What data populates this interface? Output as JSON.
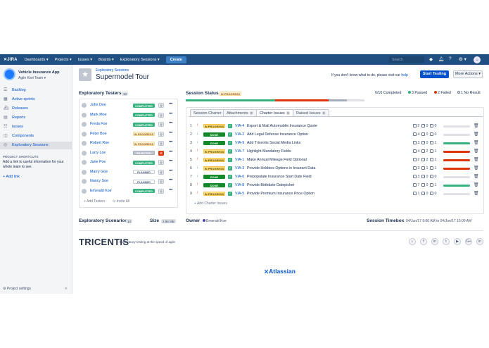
{
  "topbar": {
    "logo": "✕JIRA",
    "nav": [
      "Dashboards ▾",
      "Projects ▾",
      "Issues ▾",
      "Boards ▾",
      "Exploratory Sessions ▾"
    ],
    "create": "Create",
    "search_placeholder": "Search"
  },
  "sidebar": {
    "project_name": "Vehicle Insurance App",
    "team": "Agile Kiwi Team ▾",
    "items": [
      {
        "label": "Backlog",
        "icon": "backlog-icon"
      },
      {
        "label": "Active sprints",
        "icon": "board-icon"
      },
      {
        "label": "Releases",
        "icon": "ship-icon"
      },
      {
        "label": "Reports",
        "icon": "chart-icon"
      },
      {
        "label": "Issues",
        "icon": "issues-icon"
      },
      {
        "label": "Components",
        "icon": "components-icon"
      },
      {
        "label": "Exploratory Sessions",
        "icon": "session-icon"
      }
    ],
    "shortcuts_title": "PROJECT SHORTCUTS",
    "shortcuts_desc": "Add a link to useful information for your whole team to see.",
    "add_link": "Add link",
    "project_settings": "Project settings"
  },
  "header": {
    "breadcrumb": "Exploratory Sessions",
    "title": "Supermodel Tour",
    "help_prefix": "If you don't know what to do, please visit our ",
    "help_link": "help",
    "start_button": "Start Testing",
    "more_button": "More Actions ▾"
  },
  "testers": {
    "title": "Exploratory Testers",
    "count": "10",
    "rows": [
      {
        "name": "John Doe",
        "status": "COMPLETED",
        "cls": "lz-completed",
        "red": false
      },
      {
        "name": "Mark Moe",
        "status": "COMPLETED",
        "cls": "lz-completed",
        "red": false
      },
      {
        "name": "Freda Foe",
        "status": "COMPLETED",
        "cls": "lz-completed",
        "red": false
      },
      {
        "name": "Peter Boe",
        "status": "IN PROGRESS",
        "cls": "lz-inprogress",
        "red": false
      },
      {
        "name": "Robert Roe",
        "status": "IN PROGRESS",
        "cls": "lz-inprogress",
        "red": false
      },
      {
        "name": "Larry Loe",
        "status": "REJECTED",
        "cls": "lz-rejected",
        "red": true
      },
      {
        "name": "Jane Poe",
        "status": "COMPLETED",
        "cls": "lz-completed",
        "red": false
      },
      {
        "name": "Marry Goe",
        "status": "PLANNED",
        "cls": "lz-planned",
        "red": false
      },
      {
        "name": "Nancy Soe",
        "status": "PLANNED",
        "cls": "lz-planned",
        "red": false
      },
      {
        "name": "Emerald Koe",
        "status": "COMPLETED",
        "cls": "lz-completed",
        "red": false
      }
    ],
    "add_testers": "+ Add Testers",
    "invite_all": "⊙ Invite All"
  },
  "session": {
    "title": "Session Status",
    "status": "IN PROGRESS",
    "completed": "6/10 Completed",
    "passed": "3 Passed",
    "failed": "2 Failed",
    "noresult": "1 No Result",
    "progress": {
      "passed": 0.5,
      "failed": 0.3,
      "noresult": 0.1
    }
  },
  "tabs": [
    {
      "label": "Session Charter",
      "count": ""
    },
    {
      "label": "Attachments",
      "count": "0"
    },
    {
      "label": "Charter Issues",
      "count": "9"
    },
    {
      "label": "Raised Issues",
      "count": "0"
    }
  ],
  "issues": [
    {
      "n": "1",
      "pri": "↑",
      "pc": "#de350b",
      "status": "IN PROGRESS",
      "cls": "lz-inprog2",
      "key": "VIA-4",
      "summary": "Export & Mail Automobile Insurance Quote",
      "a": "2",
      "b": "0",
      "c": "0",
      "pass": 0,
      "fail": 0,
      "nores": 0
    },
    {
      "n": "2",
      "pri": "↓",
      "pc": "#36b37e",
      "status": "DONE",
      "cls": "lz-done",
      "key": "VIA-2",
      "summary": "Add Legal Defense Insurance Option",
      "a": "4",
      "b": "0",
      "c": "0",
      "pass": 0,
      "fail": 0,
      "nores": 0
    },
    {
      "n": "3",
      "pri": "↓",
      "pc": "#36b37e",
      "status": "DONE",
      "cls": "lz-done",
      "key": "VIA-9",
      "summary": "Add Tricentis Social Media Links",
      "a": "3",
      "b": "0",
      "c": "1",
      "pass": 1.0,
      "fail": 0,
      "nores": 0
    },
    {
      "n": "4",
      "pri": "↑",
      "pc": "#de350b",
      "status": "IN PROGRESS",
      "cls": "lz-inprog2",
      "key": "VIA-7",
      "summary": "Highlight Mandatory Fields",
      "a": "4",
      "b": "2",
      "c": "1",
      "pass": 0,
      "fail": 1.0,
      "nores": 0
    },
    {
      "n": "5",
      "pri": "↑",
      "pc": "#de350b",
      "status": "IN PROGRESS",
      "cls": "lz-inprog2",
      "key": "VIA-1",
      "summary": "Make Annual Mileage Field Optional",
      "a": "2",
      "b": "2",
      "c": "1",
      "pass": 0,
      "fail": 1.0,
      "nores": 0
    },
    {
      "n": "6",
      "pri": "↓",
      "pc": "#36b37e",
      "status": "IN PROGRESS",
      "cls": "lz-inprog2",
      "key": "VIA-3",
      "summary": "Provide Hobbies Options in Insurant Data",
      "a": "3",
      "b": "1",
      "c": "1",
      "pass": 0,
      "fail": 1.0,
      "nores": 0
    },
    {
      "n": "7",
      "pri": "↓",
      "pc": "#36b37e",
      "status": "DONE",
      "cls": "lz-done",
      "key": "VIA-6",
      "summary": "Prepopulate Insurance Start Date Field",
      "a": "3",
      "b": "0",
      "c": "0",
      "pass": 0,
      "fail": 0,
      "nores": 0
    },
    {
      "n": "8",
      "pri": "↑",
      "pc": "#de350b",
      "status": "DONE",
      "cls": "lz-done",
      "key": "VIA-8",
      "summary": "Provide Birthdate Datepicker",
      "a": "7",
      "b": "0",
      "c": "1",
      "pass": 1.0,
      "fail": 0,
      "nores": 0
    },
    {
      "n": "9",
      "pri": "↑",
      "pc": "#de350b",
      "status": "IN PROGRESS",
      "cls": "lz-inprog2",
      "key": "VIA-5",
      "summary": "Provide Premium Insurance Price Option",
      "a": "1",
      "b": "0",
      "c": "0",
      "pass": 0,
      "fail": 0,
      "nores": 0
    }
  ],
  "add_charter": "+ Add Charter Issues",
  "footer": {
    "scenarios": "Exploratory Scenarios",
    "scenarios_count": "13",
    "size": "Size",
    "size_val": "2.86 MB",
    "owner": "Owner",
    "owner_name": "Emerald Koe",
    "timebox": "Session Timebox",
    "timebox_val": "04/Jun/17 9:00 AM to 04/Jun/17 10:00 AM",
    "brand": "TRICENTIS",
    "tagline": "Exploratory testing at the speed of agile",
    "social": [
      "⌂",
      "f",
      "in",
      "t",
      "▶",
      "G+",
      "in"
    ],
    "atlassian": "⨯Atlassian"
  },
  "colors": {
    "passed": "#36b37e",
    "failed": "#de350b",
    "noresult": "#c1c7d0",
    "brand": "#205081"
  }
}
